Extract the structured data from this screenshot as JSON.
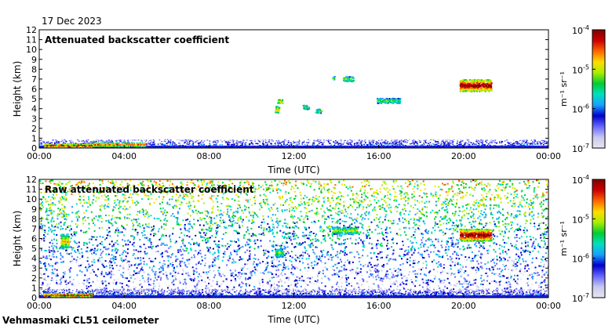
{
  "date_label": "17 Dec 2023",
  "footer_label": "Vehmasmaki CL51 ceilometer",
  "colors": {
    "background_fill": "#ffffff",
    "colormap": [
      "#e6e6f0",
      "#c8c8f0",
      "#6666ff",
      "#0000cc",
      "#1aa0ff",
      "#00e0c0",
      "#00cc33",
      "#aaee00",
      "#ffdd00",
      "#ff6600",
      "#cc0000",
      "#800000"
    ]
  },
  "chart_data": [
    {
      "type": "heatmap",
      "title": "Attenuated backscatter coefficient",
      "xlabel": "Time (UTC)",
      "ylabel": "Height (km)",
      "x_ticks": [
        "00:00",
        "04:00",
        "08:00",
        "12:00",
        "16:00",
        "20:00",
        "00:00"
      ],
      "y_ticks": [
        "0",
        "1",
        "2",
        "3",
        "4",
        "5",
        "6",
        "7",
        "8",
        "9",
        "10",
        "11",
        "12"
      ],
      "ylim": [
        0,
        12
      ],
      "colorbar": {
        "scale": "log",
        "range": [
          1e-07,
          0.0001
        ],
        "tick_base": [
          "10",
          "10",
          "10",
          "10"
        ],
        "tick_exp": [
          "-4",
          "-5",
          "-6",
          "-7"
        ],
        "label": "m⁻¹ sr⁻¹"
      },
      "features": [
        {
          "kind": "boundary_layer",
          "t_start": 0,
          "t_end": 24,
          "height_top_km": 0.7
        },
        {
          "kind": "cloud",
          "t_start": 0.2,
          "t_end": 2.5,
          "h_low": 0.1,
          "h_high": 0.5,
          "intensity": 0.9
        },
        {
          "kind": "cloud",
          "t_start": 2.5,
          "t_end": 5.0,
          "h_low": 0.2,
          "h_high": 0.6,
          "intensity": 0.85
        },
        {
          "kind": "cloud",
          "t_start": 11.1,
          "t_end": 11.3,
          "h_low": 3.6,
          "h_high": 4.3,
          "intensity": 0.8
        },
        {
          "kind": "cloud",
          "t_start": 11.2,
          "t_end": 11.5,
          "h_low": 4.6,
          "h_high": 5.0,
          "intensity": 0.8
        },
        {
          "kind": "cloud",
          "t_start": 12.4,
          "t_end": 12.7,
          "h_low": 4.0,
          "h_high": 4.4,
          "intensity": 0.6
        },
        {
          "kind": "cloud",
          "t_start": 13.0,
          "t_end": 13.3,
          "h_low": 3.6,
          "h_high": 4.0,
          "intensity": 0.6
        },
        {
          "kind": "cloud",
          "t_start": 13.8,
          "t_end": 13.9,
          "h_low": 7.0,
          "h_high": 7.3,
          "intensity": 0.6
        },
        {
          "kind": "cloud",
          "t_start": 14.3,
          "t_end": 14.8,
          "h_low": 6.8,
          "h_high": 7.3,
          "intensity": 0.65
        },
        {
          "kind": "cloud",
          "t_start": 15.9,
          "t_end": 17.0,
          "h_low": 4.6,
          "h_high": 5.1,
          "intensity": 0.6
        },
        {
          "kind": "cloud",
          "t_start": 19.8,
          "t_end": 21.3,
          "h_low": 5.8,
          "h_high": 7.0,
          "intensity": 1.0
        }
      ]
    },
    {
      "type": "heatmap",
      "title": "Raw attenuated backscatter coefficient",
      "xlabel": "Time (UTC)",
      "ylabel": "Height (km)",
      "x_ticks": [
        "00:00",
        "04:00",
        "08:00",
        "12:00",
        "16:00",
        "20:00",
        "00:00"
      ],
      "y_ticks": [
        "0",
        "1",
        "2",
        "3",
        "4",
        "5",
        "6",
        "7",
        "8",
        "9",
        "10",
        "11",
        "12"
      ],
      "ylim": [
        0,
        12
      ],
      "colorbar": {
        "scale": "log",
        "range": [
          1e-07,
          0.0001
        ],
        "tick_base": [
          "10",
          "10",
          "10",
          "10"
        ],
        "tick_exp": [
          "-4",
          "-5",
          "-6",
          "-7"
        ],
        "label": "m⁻¹ sr⁻¹"
      },
      "features": [
        {
          "kind": "noise_field",
          "t_start": 0,
          "t_end": 24,
          "noise_increases_with_height": true
        },
        {
          "kind": "boundary_layer",
          "t_start": 0,
          "t_end": 24,
          "height_top_km": 0.7
        },
        {
          "kind": "cloud",
          "t_start": 0.2,
          "t_end": 2.5,
          "h_low": 0.1,
          "h_high": 0.5,
          "intensity": 0.9
        },
        {
          "kind": "cloud",
          "t_start": 1.0,
          "t_end": 1.4,
          "h_low": 5.0,
          "h_high": 6.5,
          "intensity": 0.75
        },
        {
          "kind": "cloud",
          "t_start": 11.1,
          "t_end": 11.5,
          "h_low": 4.2,
          "h_high": 5.0,
          "intensity": 0.6
        },
        {
          "kind": "cloud",
          "t_start": 13.8,
          "t_end": 15.0,
          "h_low": 6.5,
          "h_high": 7.2,
          "intensity": 0.65
        },
        {
          "kind": "cloud",
          "t_start": 19.8,
          "t_end": 21.3,
          "h_low": 5.8,
          "h_high": 7.0,
          "intensity": 1.0
        }
      ]
    }
  ]
}
